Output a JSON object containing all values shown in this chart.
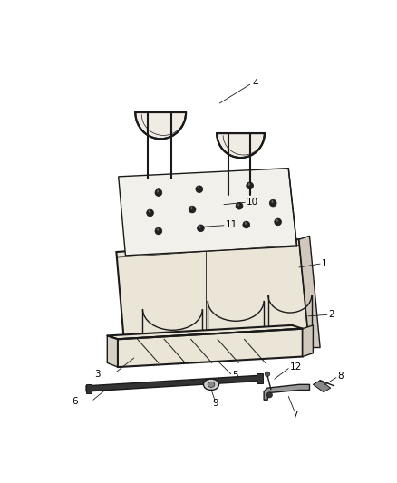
{
  "bg_color": "#ffffff",
  "line_color": "#1a1a1a",
  "fill_light": "#f0ece4",
  "fill_mid": "#e0dbd0",
  "fill_dark": "#c8c4ba",
  "fill_bolt": "#1a1a1a",
  "figsize": [
    4.38,
    5.33
  ],
  "dpi": 100,
  "label_fontsize": 7.5,
  "label_color": "#000000"
}
